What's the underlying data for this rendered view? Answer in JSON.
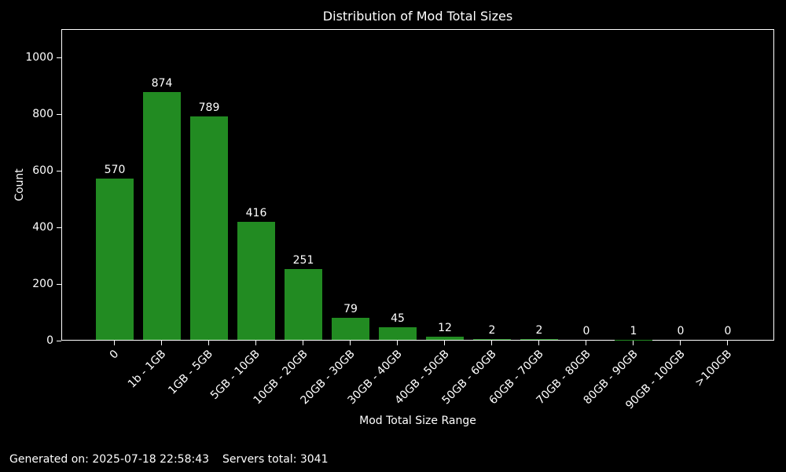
{
  "chart_data": {
    "type": "bar",
    "title": "Distribution of Mod Total Sizes",
    "xlabel": "Mod Total Size Range",
    "ylabel": "Count",
    "categories": [
      "0",
      "1b - 1GB",
      "1GB - 5GB",
      "5GB - 10GB",
      "10GB - 20GB",
      "20GB - 30GB",
      "30GB - 40GB",
      "40GB - 50GB",
      "50GB - 60GB",
      "60GB - 70GB",
      "70GB - 80GB",
      "80GB - 90GB",
      "90GB - 100GB",
      ">100GB"
    ],
    "values": [
      570,
      874,
      789,
      416,
      251,
      79,
      45,
      12,
      2,
      2,
      0,
      1,
      0,
      0
    ],
    "yticks": [
      0,
      200,
      400,
      600,
      800,
      1000
    ],
    "ylim": [
      0,
      1100
    ],
    "grid": false,
    "legend": null,
    "bar_color": "#228B22",
    "background_color": "#000000",
    "text_color": "#ffffff",
    "spine_color": "#ffffff"
  },
  "footer": {
    "generated": "Generated on: 2025-07-18 22:58:43",
    "servers_total": "Servers total: 3041"
  }
}
